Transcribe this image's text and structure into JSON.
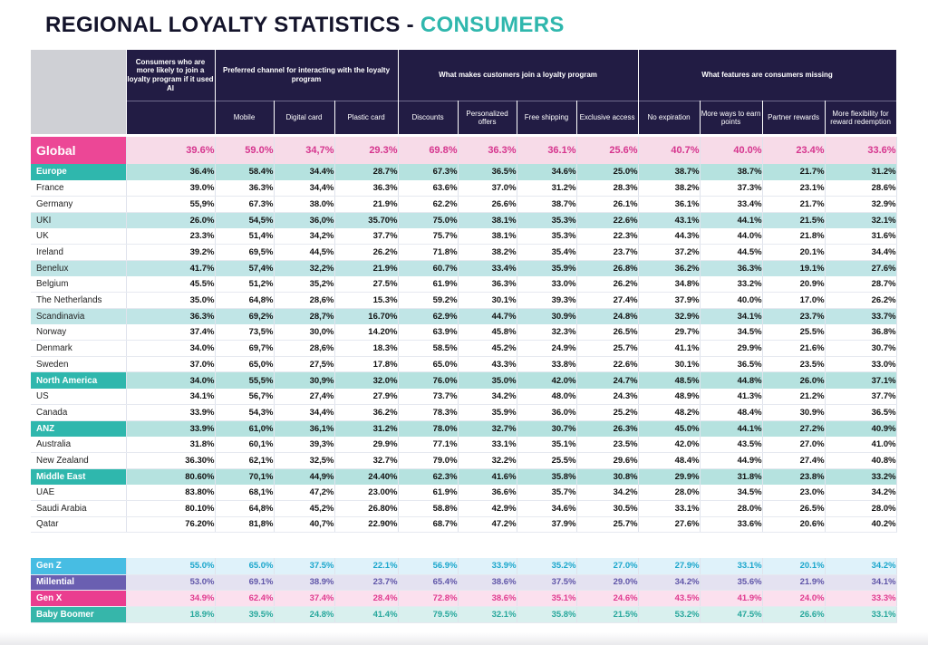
{
  "title": {
    "main": "REGIONAL LOYALTY STATISTICS - ",
    "accent": "CONSUMERS"
  },
  "header_groups": [
    "Consumers who are more likely to join a loyalty program if it used AI",
    "Preferred channel for interacting with the loyalty program",
    "What makes customers join a loyalty program",
    "What features are consumers missing"
  ],
  "columns": [
    "Mobile",
    "Digital card",
    "Plastic card",
    "Discounts",
    "Personalized offers",
    "Free shipping",
    "Exclusive access",
    "No expiration",
    "More ways to earn points",
    "Partner rewards",
    "More flexibility for reward redemption"
  ],
  "rows": [
    {
      "label": "Global",
      "type": "global",
      "values": [
        "39.6%",
        "59.0%",
        "34,7%",
        "29.3%",
        "69.8%",
        "36.3%",
        "36.1%",
        "25.6%",
        "40.7%",
        "40.0%",
        "23.4%",
        "33.6%"
      ]
    },
    {
      "label": "Europe",
      "type": "region-strong",
      "values": [
        "36.4%",
        "58.4%",
        "34.4%",
        "28.7%",
        "67.3%",
        "36.5%",
        "34.6%",
        "25.0%",
        "38.7%",
        "38.7%",
        "21.7%",
        "31.2%"
      ]
    },
    {
      "label": "France",
      "type": "country",
      "values": [
        "39.0%",
        "36.3%",
        "34,4%",
        "36.3%",
        "63.6%",
        "37.0%",
        "31.2%",
        "28.3%",
        "38.2%",
        "37.3%",
        "23.1%",
        "28.6%"
      ]
    },
    {
      "label": "Germany",
      "type": "country",
      "values": [
        "55,9%",
        "67.3%",
        "38.0%",
        "21.9%",
        "62.2%",
        "26.6%",
        "38.7%",
        "26.1%",
        "36.1%",
        "33.4%",
        "21.7%",
        "32.9%"
      ]
    },
    {
      "label": "UKI",
      "type": "region",
      "values": [
        "26.0%",
        "54,5%",
        "36,0%",
        "35.70%",
        "75.0%",
        "38.1%",
        "35.3%",
        "22.6%",
        "43.1%",
        "44.1%",
        "21.5%",
        "32.1%"
      ]
    },
    {
      "label": "UK",
      "type": "country",
      "values": [
        "23.3%",
        "51,4%",
        "34,2%",
        "37.7%",
        "75.7%",
        "38.1%",
        "35.3%",
        "22.3%",
        "44.3%",
        "44.0%",
        "21.8%",
        "31.6%"
      ]
    },
    {
      "label": "Ireland",
      "type": "country",
      "values": [
        "39.2%",
        "69,5%",
        "44,5%",
        "26.2%",
        "71.8%",
        "38.2%",
        "35.4%",
        "23.7%",
        "37.2%",
        "44.5%",
        "20.1%",
        "34.4%"
      ]
    },
    {
      "label": "Benelux",
      "type": "region",
      "values": [
        "41.7%",
        "57,4%",
        "32,2%",
        "21.9%",
        "60.7%",
        "33.4%",
        "35.9%",
        "26.8%",
        "36.2%",
        "36.3%",
        "19.1%",
        "27.6%"
      ]
    },
    {
      "label": "Belgium",
      "type": "country",
      "values": [
        "45.5%",
        "51,2%",
        "35,2%",
        "27.5%",
        "61.9%",
        "36.3%",
        "33.0%",
        "26.2%",
        "34.8%",
        "33.2%",
        "20.9%",
        "28.7%"
      ]
    },
    {
      "label": "The Netherlands",
      "type": "country",
      "values": [
        "35.0%",
        "64,8%",
        "28,6%",
        "15.3%",
        "59.2%",
        "30.1%",
        "39.3%",
        "27.4%",
        "37.9%",
        "40.0%",
        "17.0%",
        "26.2%"
      ]
    },
    {
      "label": "Scandinavia",
      "type": "region",
      "values": [
        "36.3%",
        "69,2%",
        "28,7%",
        "16.70%",
        "62.9%",
        "44.7%",
        "30.9%",
        "24.8%",
        "32.9%",
        "34.1%",
        "23.7%",
        "33.7%"
      ]
    },
    {
      "label": "Norway",
      "type": "country",
      "values": [
        "37.4%",
        "73,5%",
        "30,0%",
        "14.20%",
        "63.9%",
        "45.8%",
        "32.3%",
        "26.5%",
        "29.7%",
        "34.5%",
        "25.5%",
        "36.8%"
      ]
    },
    {
      "label": "Denmark",
      "type": "country",
      "values": [
        "34.0%",
        "69,7%",
        "28,6%",
        "18.3%",
        "58.5%",
        "45.2%",
        "24.9%",
        "25.7%",
        "41.1%",
        "29.9%",
        "21.6%",
        "30.7%"
      ]
    },
    {
      "label": "Sweden",
      "type": "country",
      "values": [
        "37.0%",
        "65,0%",
        "27,5%",
        "17.8%",
        "65.0%",
        "43.3%",
        "33.8%",
        "22.6%",
        "30.1%",
        "36.5%",
        "23.5%",
        "33.0%"
      ]
    },
    {
      "label": "North America",
      "type": "region-strong",
      "values": [
        "34.0%",
        "55,5%",
        "30,9%",
        "32.0%",
        "76.0%",
        "35.0%",
        "42.0%",
        "24.7%",
        "48.5%",
        "44.8%",
        "26.0%",
        "37.1%"
      ]
    },
    {
      "label": "US",
      "type": "country",
      "values": [
        "34.1%",
        "56,7%",
        "27,4%",
        "27.9%",
        "73.7%",
        "34.2%",
        "48.0%",
        "24.3%",
        "48.9%",
        "41.3%",
        "21.2%",
        "37.7%"
      ]
    },
    {
      "label": "Canada",
      "type": "country",
      "values": [
        "33.9%",
        "54,3%",
        "34,4%",
        "36.2%",
        "78.3%",
        "35.9%",
        "36.0%",
        "25.2%",
        "48.2%",
        "48.4%",
        "30.9%",
        "36.5%"
      ]
    },
    {
      "label": "ANZ",
      "type": "region-strong",
      "values": [
        "33.9%",
        "61,0%",
        "36,1%",
        "31.2%",
        "78.0%",
        "32.7%",
        "30.7%",
        "26.3%",
        "45.0%",
        "44.1%",
        "27.2%",
        "40.9%"
      ]
    },
    {
      "label": "Australia",
      "type": "country",
      "values": [
        "31.8%",
        "60,1%",
        "39,3%",
        "29.9%",
        "77.1%",
        "33.1%",
        "35.1%",
        "23.5%",
        "42.0%",
        "43.5%",
        "27.0%",
        "41.0%"
      ]
    },
    {
      "label": "New Zealand",
      "type": "country",
      "values": [
        "36.30%",
        "62,1%",
        "32,5%",
        "32.7%",
        "79.0%",
        "32.2%",
        "25.5%",
        "29.6%",
        "48.4%",
        "44.9%",
        "27.4%",
        "40.8%"
      ]
    },
    {
      "label": "Middle East",
      "type": "region-strong",
      "values": [
        "80.60%",
        "70,1%",
        "44,9%",
        "24.40%",
        "62.3%",
        "41.6%",
        "35.8%",
        "30.8%",
        "29.9%",
        "31.8%",
        "23.8%",
        "33.2%"
      ]
    },
    {
      "label": "UAE",
      "type": "country",
      "values": [
        "83.80%",
        "68,1%",
        "47,2%",
        "23.00%",
        "61.9%",
        "36.6%",
        "35.7%",
        "34.2%",
        "28.0%",
        "34.5%",
        "23.0%",
        "34.2%"
      ]
    },
    {
      "label": "Saudi Arabia",
      "type": "country",
      "values": [
        "80.10%",
        "64,8%",
        "45,2%",
        "26.80%",
        "58.8%",
        "42.9%",
        "34.6%",
        "30.5%",
        "33.1%",
        "28.0%",
        "26.5%",
        "28.0%"
      ]
    },
    {
      "label": "Qatar",
      "type": "country",
      "values": [
        "76.20%",
        "81,8%",
        "40,7%",
        "22.90%",
        "68.7%",
        "47.2%",
        "37.9%",
        "25.7%",
        "27.6%",
        "33.6%",
        "20.6%",
        "40.2%"
      ]
    }
  ],
  "generation_rows": [
    {
      "label": "Gen Z",
      "type": "genz",
      "values": [
        "55.0%",
        "65.0%",
        "37.5%",
        "22.1%",
        "56.9%",
        "33.9%",
        "35.2%",
        "27.0%",
        "27.9%",
        "33.1%",
        "20.1%",
        "34.2%"
      ]
    },
    {
      "label": "Millential",
      "type": "mill",
      "values": [
        "53.0%",
        "69.1%",
        "38.9%",
        "23.7%",
        "65.4%",
        "38.6%",
        "37.5%",
        "29.0%",
        "34.2%",
        "35.6%",
        "21.9%",
        "34.1%"
      ]
    },
    {
      "label": "Gen X",
      "type": "genx",
      "values": [
        "34.9%",
        "62.4%",
        "37.4%",
        "28.4%",
        "72.8%",
        "38.6%",
        "35.1%",
        "24.6%",
        "43.5%",
        "41.9%",
        "24.0%",
        "33.3%"
      ]
    },
    {
      "label": "Baby Boomer",
      "type": "boom",
      "values": [
        "18.9%",
        "39.5%",
        "24.8%",
        "41.4%",
        "79.5%",
        "32.1%",
        "35.8%",
        "21.5%",
        "53.2%",
        "47.5%",
        "26.6%",
        "33.1%"
      ]
    }
  ]
}
